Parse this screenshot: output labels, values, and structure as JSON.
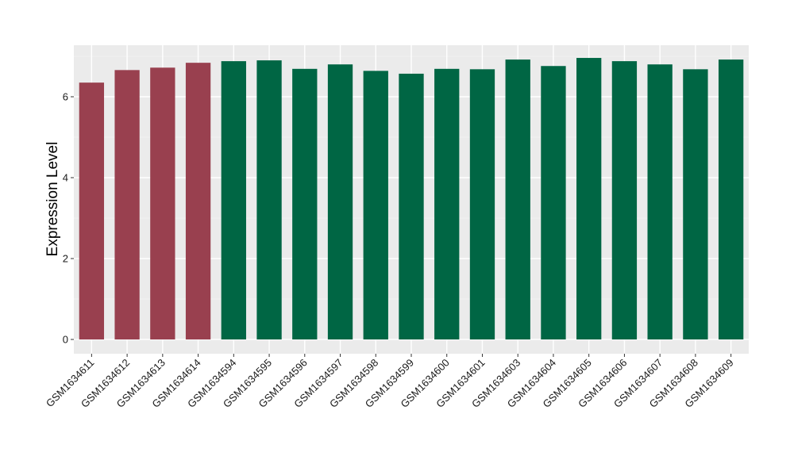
{
  "chart_data": {
    "type": "bar",
    "title": "",
    "xlabel": "",
    "ylabel": "Expression Level",
    "ylim": [
      0,
      7.3
    ],
    "yticks": [
      0,
      2,
      4,
      6
    ],
    "grid": true,
    "legend": "none",
    "categories": [
      "GSM1634611",
      "GSM1634612",
      "GSM1634613",
      "GSM1634614",
      "GSM1634594",
      "GSM1634595",
      "GSM1634596",
      "GSM1634597",
      "GSM1634598",
      "GSM1634599",
      "GSM1634600",
      "GSM1634601",
      "GSM1634603",
      "GSM1634604",
      "GSM1634605",
      "GSM1634606",
      "GSM1634607",
      "GSM1634608",
      "GSM1634609"
    ],
    "values": [
      6.35,
      6.66,
      6.72,
      6.84,
      6.88,
      6.9,
      6.69,
      6.8,
      6.64,
      6.57,
      6.69,
      6.68,
      6.92,
      6.76,
      6.96,
      6.88,
      6.8,
      6.68,
      6.92
    ],
    "groups": [
      "a",
      "a",
      "a",
      "a",
      "b",
      "b",
      "b",
      "b",
      "b",
      "b",
      "b",
      "b",
      "b",
      "b",
      "b",
      "b",
      "b",
      "b",
      "b"
    ],
    "colors": {
      "a": "#99404f",
      "b": "#006644",
      "panel": "#ebebeb",
      "grid_major": "#ffffff",
      "grid_minor": "#f5f5f5"
    }
  }
}
